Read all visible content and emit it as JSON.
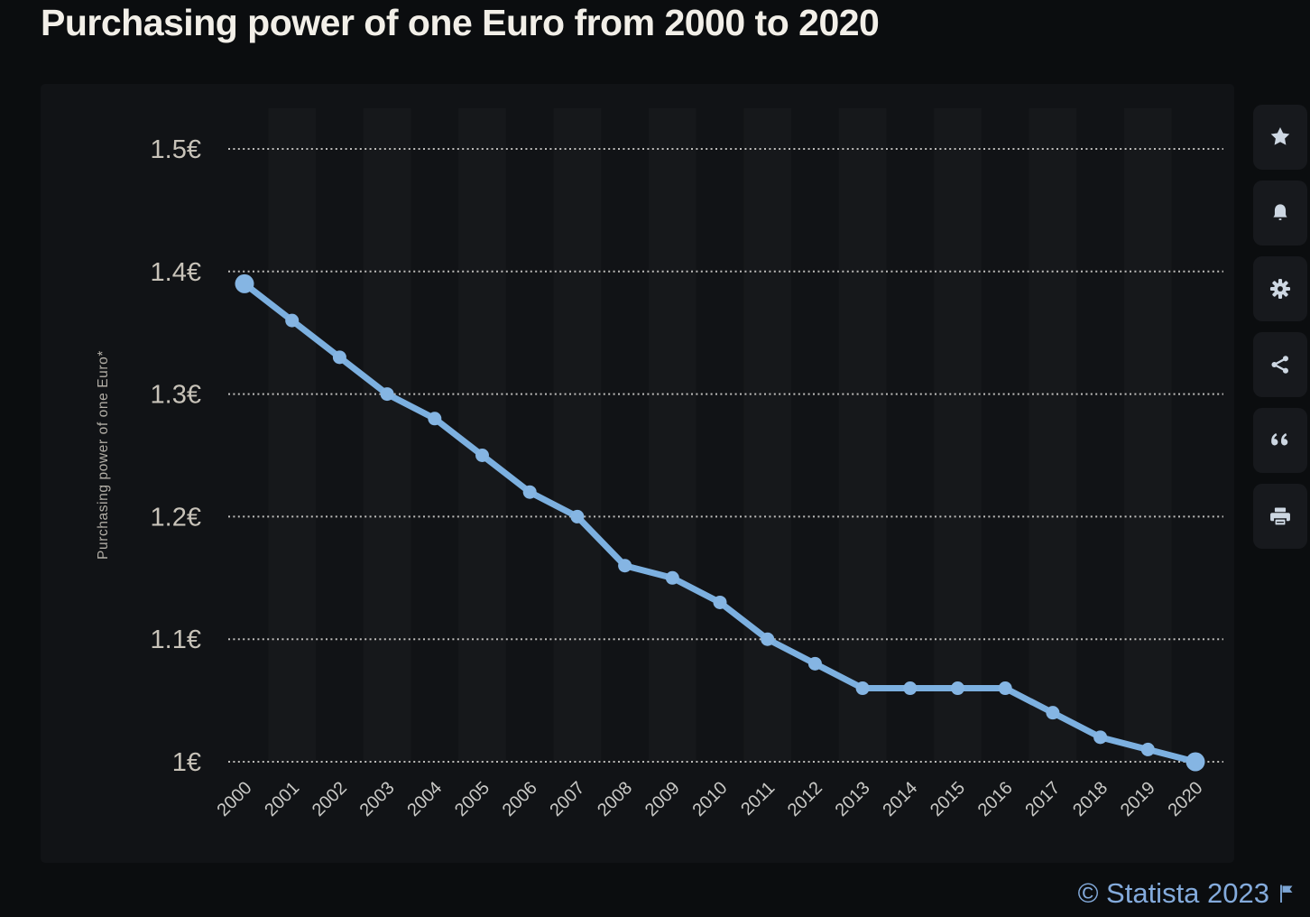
{
  "page": {
    "title": "Purchasing power of one Euro from 2000 to 2020",
    "background": "#0b0d0f",
    "panel_background": "#111316"
  },
  "chart_data": {
    "type": "line",
    "title": "Purchasing power of one Euro from 2000 to 2020",
    "xlabel": "",
    "ylabel": "Purchasing power of one Euro*",
    "x": [
      2000,
      2001,
      2002,
      2003,
      2004,
      2005,
      2006,
      2007,
      2008,
      2009,
      2010,
      2011,
      2012,
      2013,
      2014,
      2015,
      2016,
      2017,
      2018,
      2019,
      2020
    ],
    "series": [
      {
        "name": "Purchasing power of one Euro",
        "values": [
          1.39,
          1.36,
          1.33,
          1.3,
          1.28,
          1.25,
          1.22,
          1.2,
          1.16,
          1.15,
          1.13,
          1.1,
          1.08,
          1.06,
          1.06,
          1.06,
          1.06,
          1.04,
          1.02,
          1.01,
          1.0
        ]
      }
    ],
    "ylim": [
      1.0,
      1.5
    ],
    "y_ticks": [
      1.0,
      1.1,
      1.2,
      1.3,
      1.4,
      1.5
    ],
    "y_tick_labels": [
      "1€",
      "1.1€",
      "1.2€",
      "1.3€",
      "1.4€",
      "1.5€"
    ],
    "grid": "horizontal-dotted",
    "legend": "none",
    "line_color": "#7cb0e0",
    "marker_color": "#85b5e3",
    "tick_label_color": "#c8c3b9",
    "grid_color": "#edebe7"
  },
  "sidebar": {
    "buttons": [
      {
        "id": "favorite",
        "icon": "star-icon"
      },
      {
        "id": "notifications",
        "icon": "bell-icon"
      },
      {
        "id": "settings",
        "icon": "gear-icon"
      },
      {
        "id": "share",
        "icon": "share-icon"
      },
      {
        "id": "cite",
        "icon": "quote-icon"
      },
      {
        "id": "print",
        "icon": "printer-icon"
      }
    ],
    "icon_color": "#cdd7e2",
    "button_background": "#17191d"
  },
  "footer": {
    "copyright": "© Statista 2023",
    "accent_color": "#84abdc"
  }
}
